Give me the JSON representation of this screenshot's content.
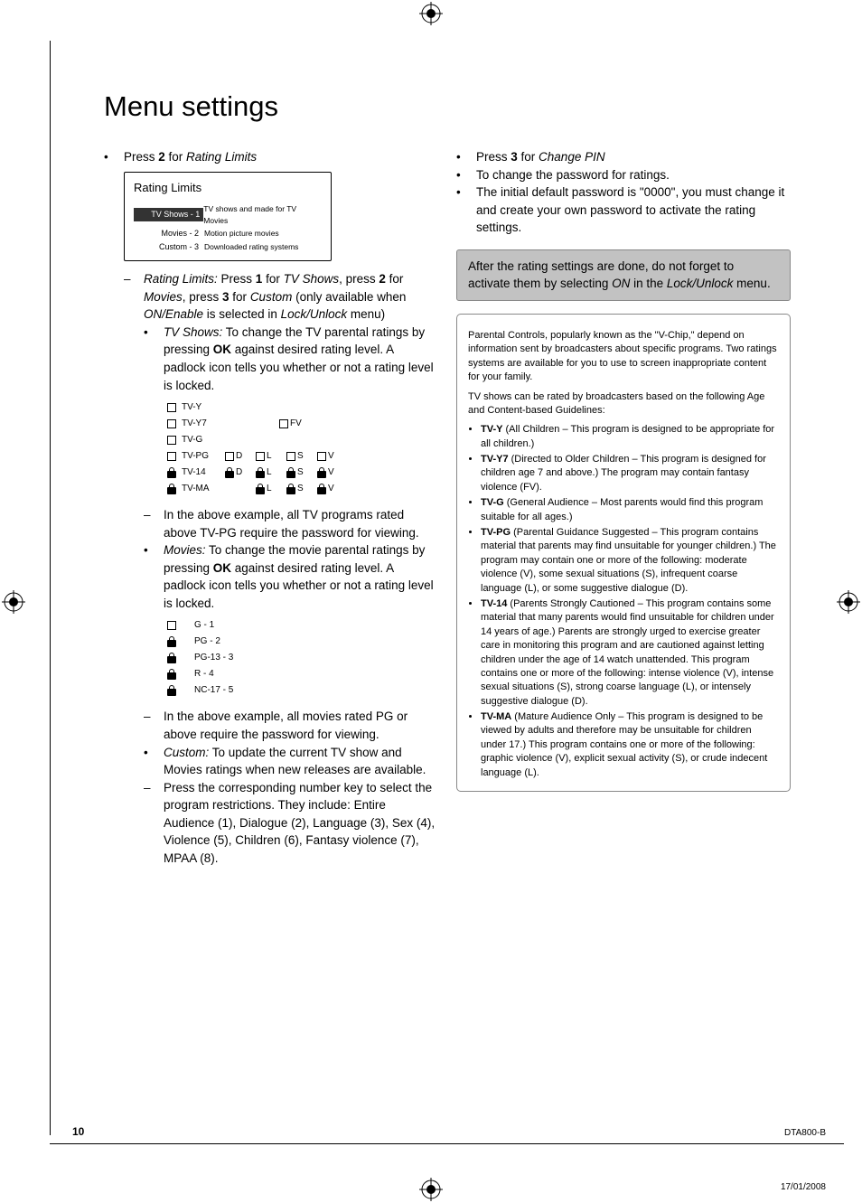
{
  "title": "Menu settings",
  "left": {
    "press2": {
      "pre": "Press ",
      "key": "2",
      "post": " for ",
      "target": "Rating Limits"
    },
    "osd": {
      "title": "Rating Limits",
      "rows": [
        {
          "label": "TV Shows - 1",
          "desc": "TV shows and made for TV Movies",
          "selected": true
        },
        {
          "label": "Movies - 2",
          "desc": "Motion picture movies",
          "selected": false
        },
        {
          "label": "Custom - 3",
          "desc": "Downloaded rating systems",
          "selected": false
        }
      ]
    },
    "ratingLimits": {
      "label": "Rating Limits:",
      "t1": " Press ",
      "k1": "1",
      "t2": " for ",
      "i1": "TV Shows",
      "t3": ", press ",
      "k2": "2",
      "t4": " for ",
      "i2": "Movies",
      "t5": ", press ",
      "k3": "3",
      "t6": " for ",
      "i3": "Custom",
      "paren": " (only available when ",
      "i4": "ON/Enable",
      "paren2": " is selected in ",
      "i5": "Lock/Unlock",
      "paren3": " menu)"
    },
    "tvShows": {
      "label": "TV Shows:",
      "text": " To change the TV parental ratings by pressing ",
      "ok": "OK",
      "text2": " against desired rating level. A padlock icon tells you whether or not a rating level is locked."
    },
    "tvGrid": {
      "rows": [
        {
          "icon": "box",
          "label": "TV-Y",
          "cells": []
        },
        {
          "icon": "box",
          "label": "TV-Y7",
          "cells": [],
          "far": {
            "icon": "box",
            "t": "FV"
          }
        },
        {
          "icon": "box",
          "label": "TV-G",
          "cells": []
        },
        {
          "icon": "box",
          "label": "TV-PG",
          "cells": [
            {
              "i": "box",
              "t": "D"
            },
            {
              "i": "box",
              "t": "L"
            },
            {
              "i": "box",
              "t": "S"
            },
            {
              "i": "box",
              "t": "V"
            }
          ]
        },
        {
          "icon": "lock",
          "label": "TV-14",
          "cells": [
            {
              "i": "lock",
              "t": "D"
            },
            {
              "i": "lock",
              "t": "L"
            },
            {
              "i": "lock",
              "t": "S"
            },
            {
              "i": "lock",
              "t": "V"
            }
          ]
        },
        {
          "icon": "lock",
          "label": "TV-MA",
          "cells": [
            null,
            {
              "i": "lock",
              "t": "L"
            },
            {
              "i": "lock",
              "t": "S"
            },
            {
              "i": "lock",
              "t": "V"
            }
          ]
        }
      ]
    },
    "tvExample": "In the above example, all TV programs rated above TV-PG require the password for viewing.",
    "movies": {
      "label": "Movies:",
      "text": " To change the movie parental ratings by pressing ",
      "ok": "OK",
      "text2": " against desired rating level. A padlock icon tells you whether or not a rating level is locked."
    },
    "movieGrid": {
      "rows": [
        {
          "icon": "box",
          "label": "G - 1"
        },
        {
          "icon": "lock",
          "label": "PG - 2"
        },
        {
          "icon": "lock",
          "label": "PG-13 - 3"
        },
        {
          "icon": "lock",
          "label": "R - 4"
        },
        {
          "icon": "lock",
          "label": "NC-17 - 5"
        }
      ]
    },
    "movieExample": "In the above example, all movies rated PG or above require the password for viewing.",
    "custom": {
      "label": "Custom:",
      "text": " To update the current TV show and Movies ratings when new releases are available."
    },
    "pressNum": "Press the corresponding number key to select the program restrictions. They include: Entire Audience (1), Dialogue (2), Language (3), Sex (4), Violence (5), Children (6), Fantasy violence (7), MPAA (8)."
  },
  "right": {
    "press3": {
      "pre": "Press ",
      "key": "3",
      "post": " for ",
      "target": "Change PIN"
    },
    "changePwd": "To change the password for ratings.",
    "defaultPwd": "The initial default password is \"0000\", you must change it and create your own password to activate the rating settings.",
    "note": {
      "t1": "After the rating settings are done, do not forget to activate them by selecting ",
      "i1": "ON",
      "t2": " in the ",
      "i2": "Lock/Unlock",
      "t3": " menu."
    },
    "info": {
      "p1": "Parental Controls, popularly known as the \"V-Chip,\" depend on information sent by broadcasters about specific programs. Two ratings systems are available for you to use to screen inappropriate content for your family.",
      "p2": "TV shows can be rated by broadcasters based on the following Age and Content-based Guidelines:",
      "items": [
        {
          "b": "TV-Y",
          "t": " (All Children – This program is designed to be appropriate for all children.)"
        },
        {
          "b": "TV-Y7",
          "t": " (Directed to Older Children – This program is designed for children age 7 and above.) The program may contain fantasy violence (FV)."
        },
        {
          "b": "TV-G",
          "t": " (General Audience – Most parents would find this program suitable for all ages.)"
        },
        {
          "b": "TV-PG",
          "t": " (Parental Guidance Suggested – This program contains material that parents may find unsuitable for younger children.) The program may contain one or more of the following: moderate violence (V), some sexual situations (S), infrequent coarse language (L), or some suggestive dialogue (D)."
        },
        {
          "b": "TV-14",
          "t": " (Parents Strongly Cautioned – This program contains some material that many parents would find unsuitable for children under 14 years of age.) Parents are strongly urged to exercise greater care in monitoring this program and are cautioned against letting children under the age of 14 watch unattended. This program contains one or more of the following: intense violence (V), intense sexual situations (S), strong coarse language (L), or intensely suggestive dialogue (D)."
        },
        {
          "b": "TV-MA",
          "t": " (Mature Audience Only – This program is designed to be viewed by adults and therefore may be unsuitable for children under 17.) This program contains one or more of the following: graphic violence (V), explicit sexual activity (S), or crude indecent language (L)."
        }
      ]
    }
  },
  "footer": {
    "page": "10",
    "model": "DTA800-B",
    "date": "17/01/2008"
  },
  "colors": {
    "osd_sel_bg": "#333333",
    "note_bg": "#c2c2c2"
  }
}
